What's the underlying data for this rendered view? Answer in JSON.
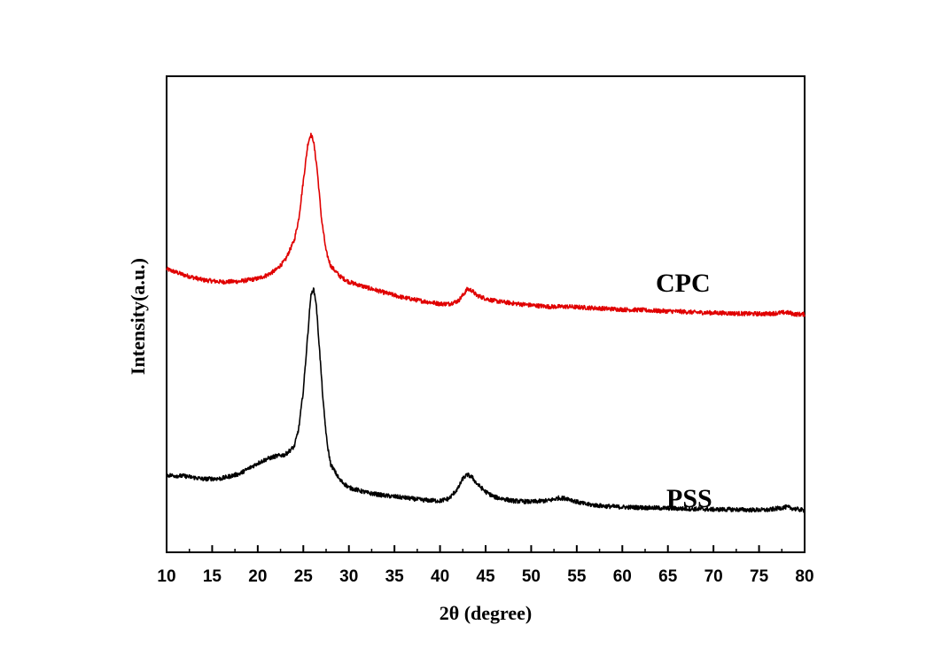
{
  "chart_data": {
    "type": "line",
    "title": "",
    "xlabel": "2θ (degree)",
    "ylabel": "Intensity(a.u.)",
    "xlim": [
      10,
      80
    ],
    "ylim": [
      0,
      100
    ],
    "x_ticks": [
      "10",
      "15",
      "20",
      "25",
      "30",
      "35",
      "40",
      "45",
      "50",
      "55",
      "60",
      "65",
      "70",
      "75",
      "80"
    ],
    "y_ticks_shown": false,
    "grid": false,
    "legend": "none (inline series labels)",
    "colors": {
      "CPC": "#e00000",
      "PSS": "#000000"
    },
    "series": [
      {
        "name": "CPC",
        "label": "CPC",
        "color": "#e00000",
        "x": [
          10,
          12,
          14,
          16,
          18,
          20,
          21,
          22,
          23,
          24,
          24.5,
          25,
          25.5,
          25.8,
          26.1,
          26.5,
          27,
          27.5,
          28,
          29,
          30,
          32,
          34,
          36,
          38,
          40,
          41,
          42,
          42.5,
          43,
          43.5,
          44,
          45,
          46,
          48,
          50,
          52,
          54,
          56,
          58,
          60,
          62,
          64,
          66,
          68,
          70,
          72,
          74,
          76,
          78,
          79,
          80
        ],
        "values": [
          59.5,
          58.2,
          57.2,
          56.8,
          56.9,
          57.5,
          58.2,
          59.3,
          61.3,
          65.5,
          70.0,
          78.0,
          85.8,
          87.8,
          86.6,
          80.8,
          70.0,
          63.2,
          60.2,
          58.0,
          56.8,
          55.6,
          54.5,
          53.5,
          52.8,
          52.2,
          52.2,
          52.8,
          54.0,
          55.3,
          55.0,
          54.0,
          53.3,
          52.8,
          52.3,
          51.9,
          51.6,
          51.6,
          51.4,
          51.2,
          51.0,
          50.9,
          50.7,
          50.6,
          50.4,
          50.3,
          50.2,
          50.1,
          50.1,
          50.4,
          50.0,
          50.0
        ]
      },
      {
        "name": "PSS",
        "label": "PSS",
        "color": "#000000",
        "x": [
          10,
          12,
          14,
          16,
          18,
          19,
          20,
          21,
          22,
          23,
          24,
          24.5,
          25,
          25.5,
          25.8,
          26.1,
          26.4,
          26.8,
          27.2,
          27.6,
          28,
          29,
          30,
          32,
          34,
          36,
          38,
          40,
          41,
          42,
          42.5,
          43,
          43.5,
          44,
          45,
          46,
          48,
          50,
          52,
          53,
          54,
          55,
          56,
          58,
          60,
          62,
          64,
          66,
          68,
          70,
          72,
          74,
          76,
          77,
          78,
          79,
          80
        ],
        "values": [
          16.2,
          16.0,
          15.4,
          15.5,
          16.5,
          17.6,
          18.7,
          19.6,
          20.2,
          20.5,
          22.2,
          26.0,
          34.0,
          46.0,
          53.5,
          55.5,
          52.5,
          42.0,
          31.0,
          23.0,
          18.5,
          15.2,
          13.6,
          12.5,
          11.9,
          11.5,
          11.0,
          10.8,
          11.3,
          13.5,
          15.5,
          16.3,
          15.8,
          14.5,
          12.7,
          11.6,
          10.8,
          10.6,
          10.9,
          11.4,
          11.3,
          10.6,
          10.1,
          9.7,
          9.5,
          9.4,
          9.3,
          9.2,
          9.1,
          9.0,
          9.0,
          8.9,
          8.9,
          9.2,
          9.5,
          9.1,
          8.8
        ]
      }
    ]
  }
}
